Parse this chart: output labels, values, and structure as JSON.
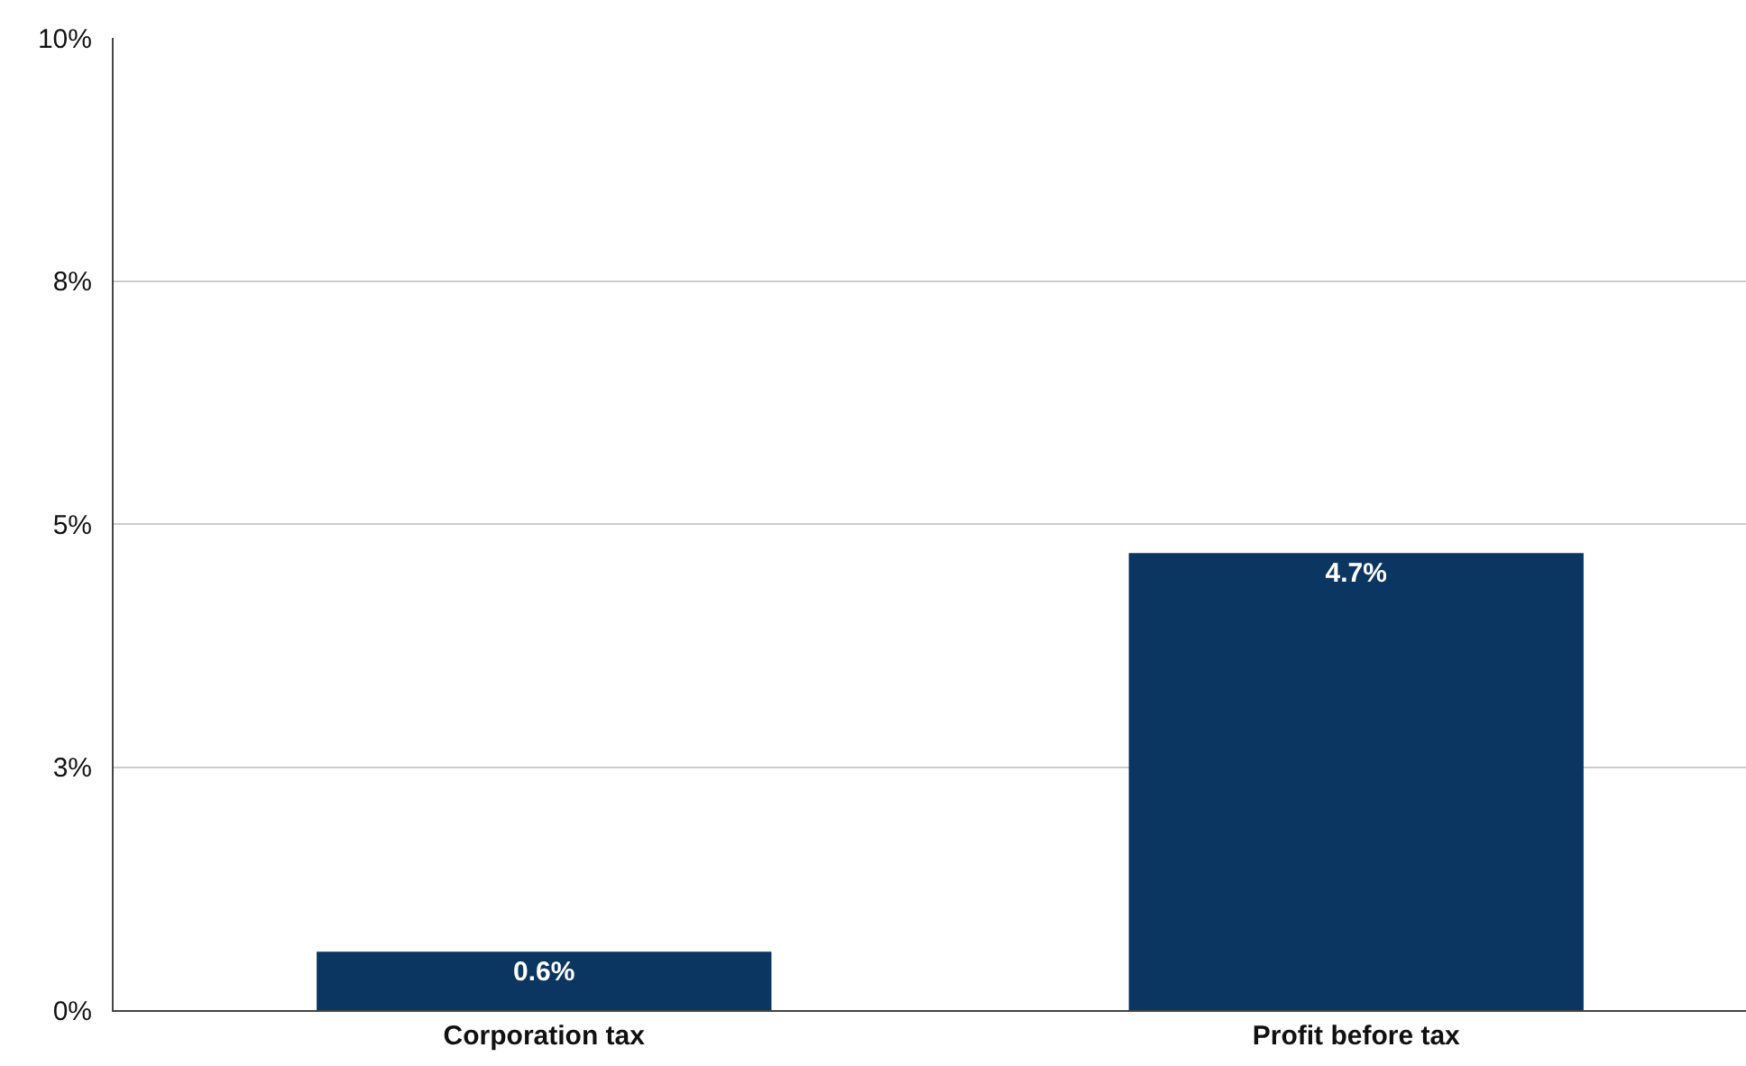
{
  "chart_data": {
    "type": "bar",
    "categories": [
      "Corporation tax",
      "Profit before tax"
    ],
    "values": [
      0.6,
      4.7
    ],
    "value_labels": [
      "0.6%",
      "4.7%"
    ],
    "color": "#0b3661",
    "ylim": [
      0,
      10
    ],
    "yticks": [
      {
        "value": 0,
        "label": "0%"
      },
      {
        "value": 2.5,
        "label": "3%"
      },
      {
        "value": 5,
        "label": "5%"
      },
      {
        "value": 7.5,
        "label": "8%"
      },
      {
        "value": 10,
        "label": "10%"
      }
    ],
    "grid": "y"
  }
}
